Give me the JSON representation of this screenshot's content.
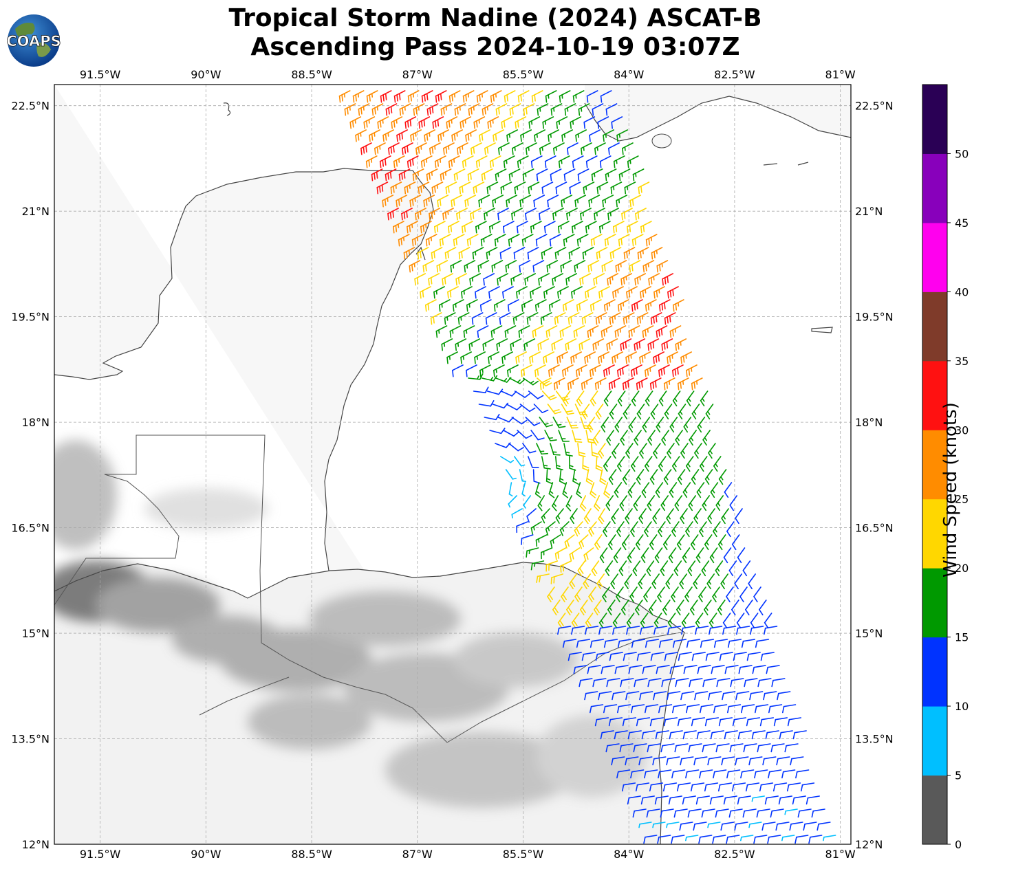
{
  "header": {
    "title_line1": "Tropical Storm Nadine (2024) ASCAT-B",
    "title_line2": "Ascending Pass 2024-10-19 03:07Z",
    "logo_text": "COAPS"
  },
  "map": {
    "lon_labels": [
      "91.5°W",
      "90°W",
      "88.5°W",
      "87°W",
      "85.5°W",
      "84°W",
      "82.5°W",
      "81°W"
    ],
    "lat_labels": [
      "22.5°N",
      "21°N",
      "19.5°N",
      "18°N",
      "16.5°N",
      "15°N",
      "13.5°N",
      "12°N"
    ],
    "lon_values": [
      -91.5,
      -90,
      -88.5,
      -87,
      -85.5,
      -84,
      -82.5,
      -81
    ],
    "lat_values": [
      22.5,
      21,
      19.5,
      18,
      16.5,
      15,
      13.5,
      12
    ],
    "lon_range": [
      -92.15,
      -80.85
    ],
    "lat_range": [
      12,
      22.8
    ],
    "gridlines": true,
    "storm_center": {
      "lon": -85.9,
      "lat": 17.1
    }
  },
  "colorbar": {
    "label": "Wind Speed (knots)",
    "ticks": [
      "0",
      "5",
      "10",
      "15",
      "20",
      "25",
      "30",
      "35",
      "40",
      "45",
      "50"
    ],
    "bins": [
      {
        "min": 0,
        "max": 5,
        "color": "#595959"
      },
      {
        "min": 5,
        "max": 10,
        "color": "#00bfff"
      },
      {
        "min": 10,
        "max": 15,
        "color": "#0033ff"
      },
      {
        "min": 15,
        "max": 20,
        "color": "#009900"
      },
      {
        "min": 20,
        "max": 25,
        "color": "#ffd700"
      },
      {
        "min": 25,
        "max": 30,
        "color": "#ff8c00"
      },
      {
        "min": 30,
        "max": 35,
        "color": "#ff1111"
      },
      {
        "min": 35,
        "max": 40,
        "color": "#7f3b2a"
      },
      {
        "min": 40,
        "max": 45,
        "color": "#ff00ee"
      },
      {
        "min": 45,
        "max": 50,
        "color": "#8800bb"
      },
      {
        "min": 50,
        "max": 55,
        "color": "#2a0055"
      }
    ]
  }
}
